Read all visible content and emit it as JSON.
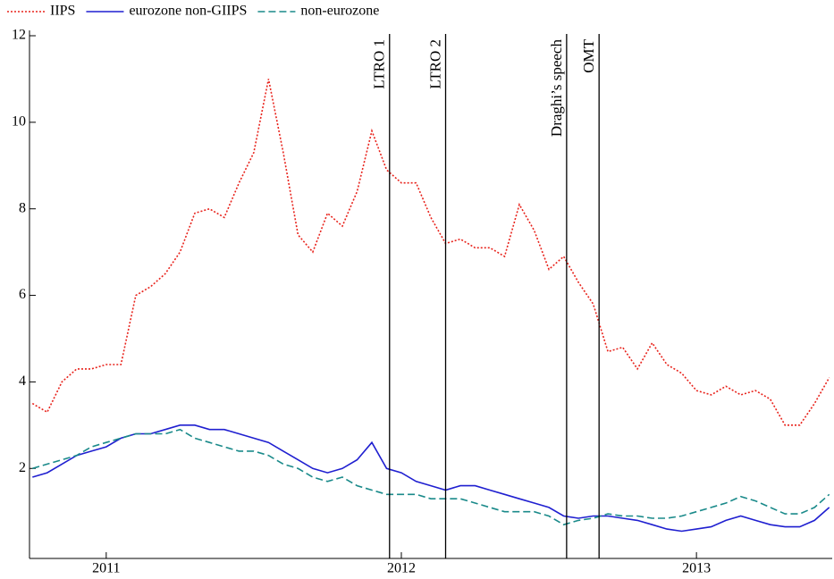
{
  "chart_data": {
    "type": "line",
    "legend": "top-left",
    "x": [
      2010.75,
      2010.8,
      2010.85,
      2010.9,
      2010.95,
      2011.0,
      2011.05,
      2011.1,
      2011.15,
      2011.2,
      2011.25,
      2011.3,
      2011.35,
      2011.4,
      2011.45,
      2011.5,
      2011.55,
      2011.6,
      2011.65,
      2011.7,
      2011.75,
      2011.8,
      2011.85,
      2011.9,
      2011.95,
      2012.0,
      2012.05,
      2012.1,
      2012.15,
      2012.2,
      2012.25,
      2012.3,
      2012.35,
      2012.4,
      2012.45,
      2012.5,
      2012.55,
      2012.6,
      2012.65,
      2012.7,
      2012.75,
      2012.8,
      2012.85,
      2012.9,
      2012.95,
      2013.0,
      2013.05,
      2013.1,
      2013.15,
      2013.2,
      2013.25,
      2013.3,
      2013.35,
      2013.4,
      2013.45
    ],
    "series": [
      {
        "name": "IIPS",
        "color": "#e8231c",
        "style": "dotted",
        "values": [
          3.5,
          3.3,
          4.0,
          4.3,
          4.3,
          4.4,
          4.4,
          6.0,
          6.2,
          6.5,
          7.0,
          7.9,
          8.0,
          7.8,
          8.6,
          9.3,
          11.0,
          9.3,
          7.4,
          7.0,
          7.9,
          7.6,
          8.4,
          9.8,
          8.9,
          8.6,
          8.6,
          7.8,
          7.2,
          7.3,
          7.1,
          7.1,
          6.9,
          8.1,
          7.5,
          6.6,
          6.9,
          6.3,
          5.8,
          4.7,
          4.8,
          4.3,
          4.9,
          4.4,
          4.2,
          3.8,
          3.7,
          3.9,
          3.7,
          3.8,
          3.6,
          3.0,
          3.0,
          3.5,
          4.1
        ]
      },
      {
        "name": "eurozone non-GIIPS",
        "color": "#1f1fd0",
        "style": "solid",
        "values": [
          1.8,
          1.9,
          2.1,
          2.3,
          2.4,
          2.5,
          2.7,
          2.8,
          2.8,
          2.9,
          3.0,
          3.0,
          2.9,
          2.9,
          2.8,
          2.7,
          2.6,
          2.4,
          2.2,
          2.0,
          1.9,
          2.0,
          2.2,
          2.6,
          2.0,
          1.9,
          1.7,
          1.6,
          1.5,
          1.6,
          1.6,
          1.5,
          1.4,
          1.3,
          1.2,
          1.1,
          0.9,
          0.85,
          0.9,
          0.9,
          0.85,
          0.8,
          0.7,
          0.6,
          0.55,
          0.6,
          0.65,
          0.8,
          0.9,
          0.8,
          0.7,
          0.65,
          0.65,
          0.8,
          1.1
        ]
      },
      {
        "name": "non-eurozone",
        "color": "#1a8a8a",
        "style": "dashed",
        "values": [
          2.0,
          2.1,
          2.2,
          2.3,
          2.5,
          2.6,
          2.7,
          2.8,
          2.8,
          2.8,
          2.9,
          2.7,
          2.6,
          2.5,
          2.4,
          2.4,
          2.3,
          2.1,
          2.0,
          1.8,
          1.7,
          1.8,
          1.6,
          1.5,
          1.4,
          1.4,
          1.4,
          1.3,
          1.3,
          1.3,
          1.2,
          1.1,
          1.0,
          1.0,
          1.0,
          0.9,
          0.7,
          0.8,
          0.85,
          0.95,
          0.9,
          0.9,
          0.85,
          0.85,
          0.9,
          1.0,
          1.1,
          1.2,
          1.35,
          1.25,
          1.1,
          0.95,
          0.95,
          1.1,
          1.4
        ]
      }
    ],
    "events": [
      {
        "x": 2011.96,
        "label": "LTRO 1"
      },
      {
        "x": 2012.15,
        "label": "LTRO 2"
      },
      {
        "x": 2012.56,
        "label": "Draghi’s speech"
      },
      {
        "x": 2012.67,
        "label": "OMT"
      }
    ],
    "xlim": [
      2010.74,
      2013.46
    ],
    "xticks": [
      2011,
      2012,
      2013
    ],
    "ylim": [
      -0.08,
      12
    ],
    "yticks": [
      2,
      4,
      6,
      8,
      10,
      12
    ],
    "grid": false
  }
}
